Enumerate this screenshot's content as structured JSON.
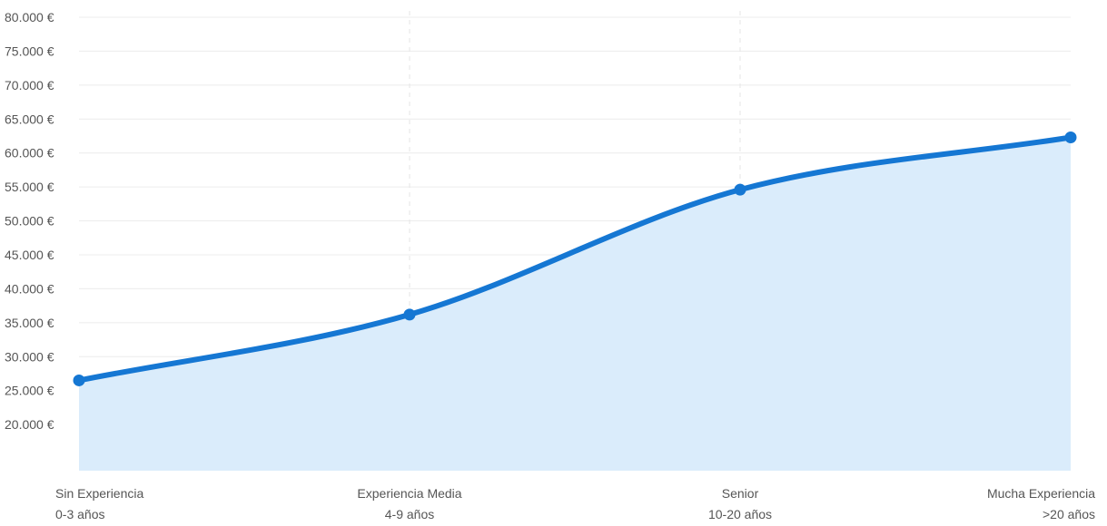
{
  "chart_data": {
    "type": "area",
    "categories": [
      {
        "line1": "Sin Experiencia",
        "line2": "0-3 años"
      },
      {
        "line1": "Experiencia Media",
        "line2": "4-9 años"
      },
      {
        "line1": "Senior",
        "line2": "10-20 años"
      },
      {
        "line1": "Mucha Experiencia",
        "line2": ">20 años"
      }
    ],
    "values": [
      26500,
      36200,
      54600,
      62300
    ],
    "y_ticks": [
      "80.000 €",
      "75.000 €",
      "70.000 €",
      "65.000 €",
      "60.000 €",
      "55.000 €",
      "50.000 €",
      "45.000 €",
      "40.000 €",
      "35.000 €",
      "30.000 €",
      "25.000 €",
      "20.000 €"
    ],
    "y_tick_values": [
      80000,
      75000,
      70000,
      65000,
      60000,
      55000,
      50000,
      45000,
      40000,
      35000,
      30000,
      25000,
      20000
    ],
    "ylim": [
      13200,
      80000
    ],
    "grid": true,
    "colors": {
      "line": "#1577d3",
      "fill": "#daecfb",
      "grid": "#ececec",
      "vgrid": "#e6e6e6"
    }
  }
}
